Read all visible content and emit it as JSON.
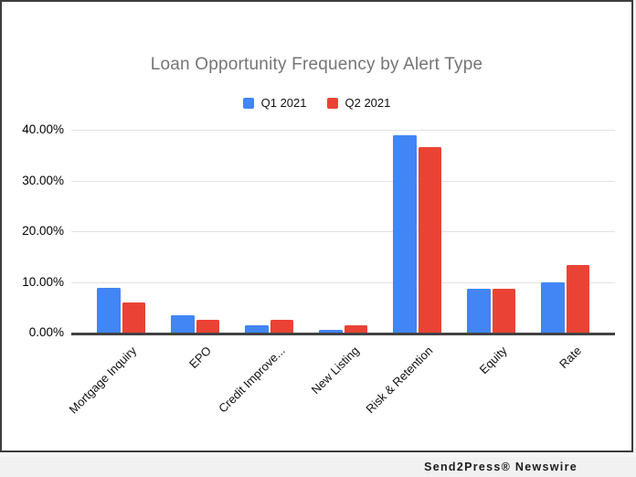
{
  "chart_data": {
    "type": "bar",
    "title": "Loan Opportunity Frequency by Alert Type",
    "categories": [
      "Mortgage Inquiry",
      "EPO",
      "Credit Improve...",
      "New Listing",
      "Risk & Retention",
      "Equity",
      "Rate"
    ],
    "series": [
      {
        "name": "Q1 2021",
        "color": "#4285F4",
        "values": [
          8.8,
          3.4,
          1.5,
          0.6,
          39.0,
          8.7,
          10.0
        ]
      },
      {
        "name": "Q2 2021",
        "color": "#EA4335",
        "values": [
          6.0,
          2.6,
          2.5,
          1.5,
          36.6,
          8.7,
          13.3
        ]
      }
    ],
    "ylabel": "",
    "xlabel": "",
    "ylim": [
      0,
      40
    ],
    "yticks": [
      {
        "value": 40,
        "label": "40.00%"
      },
      {
        "value": 30,
        "label": "30.00%"
      },
      {
        "value": 20,
        "label": "20.00%"
      },
      {
        "value": 10,
        "label": "10.00%"
      },
      {
        "value": 0,
        "label": "0.00%"
      }
    ],
    "grid": true,
    "legend_position": "top"
  },
  "footer": {
    "text": "Send2Press® Newswire"
  }
}
